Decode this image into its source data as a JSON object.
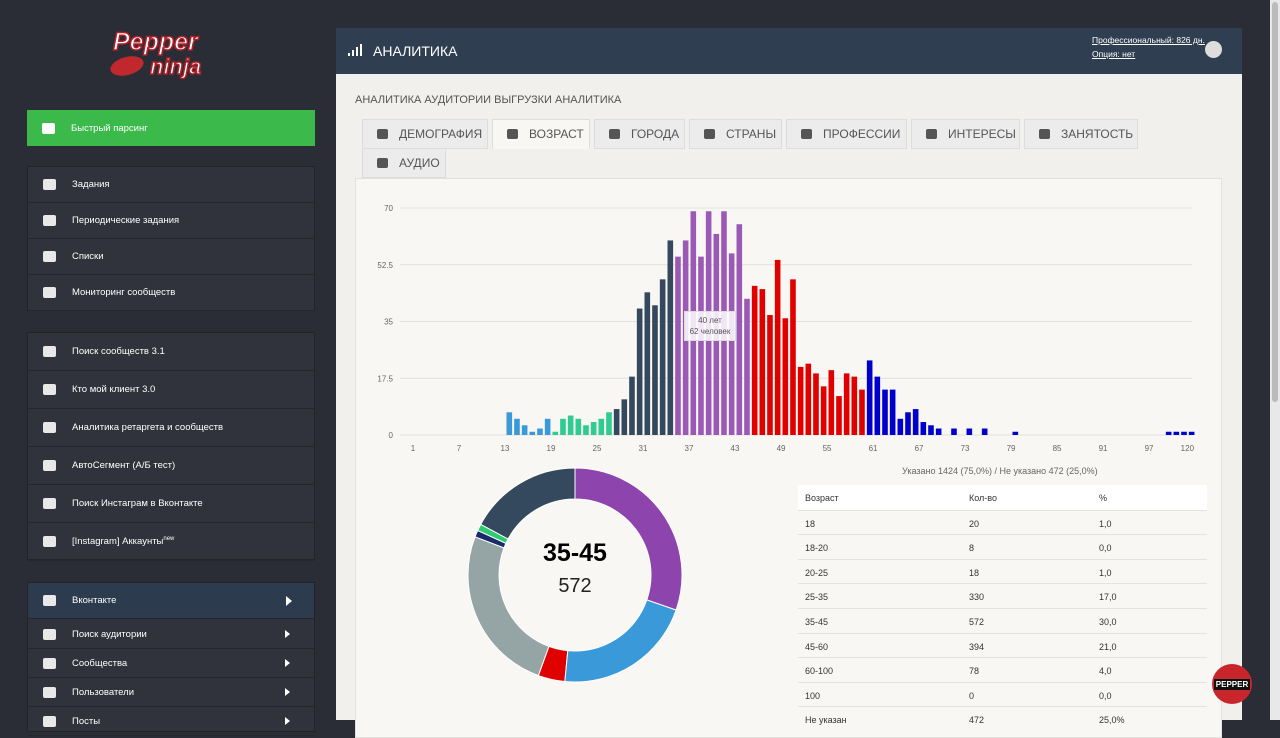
{
  "sidebar": {
    "logo": [
      "Pepper",
      "ninja"
    ],
    "quick": "Быстрый парсинг",
    "group1": [
      "Задания",
      "Периодические задания",
      "Списки",
      "Мониторинг сообществ"
    ],
    "group2": [
      "Поиск сообществ 3.1",
      "Кто мой клиент 3.0",
      "Аналитика ретаргета и сообществ",
      "АвтоСегмент (А/Б тест)",
      "Поиск Инстаграм в Вконтакте",
      "[Instagram] Аккаунты"
    ],
    "new_badge": "new",
    "vk": "Вконтакте",
    "vk_items": [
      "Поиск аудитории",
      "Сообщества",
      "Пользователи",
      "Посты"
    ]
  },
  "header": {
    "title": "АНАЛИТИКА",
    "plan": "Профессиональный: 826 дн.",
    "option": "Опция: нет"
  },
  "page": {
    "title": "АНАЛИТИКА АУДИТОРИИ ВЫГРУЗКИ АНАЛИТИКА",
    "tabs": [
      "ДЕМОГРАФИЯ",
      "ВОЗРАСТ",
      "ГОРОДА",
      "СТРАНЫ",
      "ПРОФЕССИИ",
      "ИНТЕРЕСЫ",
      "ЗАНЯТОСТЬ",
      "АУДИО"
    ]
  },
  "chart_data": [
    {
      "type": "bar",
      "categories": [
        "1",
        null,
        null,
        null,
        null,
        null,
        "7",
        null,
        null,
        null,
        null,
        null,
        "13",
        null,
        null,
        null,
        null,
        null,
        "19",
        null,
        null,
        null,
        null,
        null,
        "25",
        null,
        null,
        null,
        null,
        null,
        "31",
        null,
        null,
        null,
        null,
        null,
        "37",
        null,
        null,
        null,
        null,
        null,
        "43",
        null,
        null,
        null,
        null,
        null,
        "49",
        null,
        null,
        null,
        null,
        null,
        "55",
        null,
        null,
        null,
        null,
        null,
        "61",
        null,
        null,
        null,
        null,
        null,
        "67",
        null,
        null,
        null,
        null,
        null,
        "73",
        null,
        null,
        null,
        null,
        null,
        "79",
        null,
        null,
        null,
        null,
        null,
        "85",
        null,
        null,
        null,
        null,
        null,
        "91",
        null,
        null,
        null,
        null,
        null,
        "97",
        null,
        null,
        null,
        null,
        "120"
      ],
      "values": [
        0,
        0,
        0,
        0,
        0,
        0,
        0,
        0,
        0,
        0,
        0,
        0,
        7,
        5,
        3,
        1,
        2,
        5,
        1,
        5,
        6,
        5,
        3,
        4,
        5,
        7,
        8,
        11,
        18,
        39,
        44,
        40,
        48,
        60,
        55,
        60,
        69,
        55,
        69,
        62,
        69,
        56,
        65,
        42,
        46,
        45,
        37,
        54,
        36,
        48,
        21,
        22,
        19,
        15,
        20,
        12,
        19,
        18,
        14,
        23,
        18,
        14,
        14,
        5,
        7,
        8,
        4,
        3,
        2,
        0,
        2,
        0,
        2,
        0,
        2,
        0,
        0,
        0,
        1,
        0,
        0,
        0,
        0,
        0,
        0,
        0,
        0,
        0,
        0,
        0,
        0,
        0,
        0,
        0,
        0,
        0,
        0,
        0,
        1,
        1,
        1,
        1
      ],
      "colors": [
        "#3a9ad9",
        "#3a9ad9",
        "#3a9ad9",
        "#3a9ad9",
        "#3a9ad9",
        "#3a9ad9",
        "#3a9ad9",
        "#3a9ad9",
        "#3a9ad9",
        "#3a9ad9",
        "#3a9ad9",
        "#3a9ad9",
        "#3a9ad9",
        "#3a9ad9",
        "#3a9ad9",
        "#3a9ad9",
        "#3a9ad9",
        "#3a9ad9",
        "#2ecc8f",
        "#2ecc8f",
        "#2ecc8f",
        "#2ecc8f",
        "#2ecc8f",
        "#2ecc8f",
        "#2ecc8f",
        "#2ecc8f",
        "#34495e",
        "#34495e",
        "#34495e",
        "#34495e",
        "#34495e",
        "#34495e",
        "#34495e",
        "#34495e",
        "#9b59b6",
        "#9b59b6",
        "#9b59b6",
        "#9b59b6",
        "#9b59b6",
        "#9b59b6",
        "#9b59b6",
        "#9b59b6",
        "#9b59b6",
        "#9b59b6",
        "#e00000",
        "#e00000",
        "#e00000",
        "#e00000",
        "#e00000",
        "#e00000",
        "#e00000",
        "#e00000",
        "#e00000",
        "#e00000",
        "#e00000",
        "#e00000",
        "#e00000",
        "#e00000",
        "#e00000",
        "#0000cc",
        "#0000cc",
        "#0000cc",
        "#0000cc",
        "#0000cc",
        "#0000cc",
        "#0000cc",
        "#0000cc",
        "#0000cc",
        "#0000cc",
        "#0000cc",
        "#0000cc",
        "#0000cc",
        "#0000cc",
        "#0000cc",
        "#0000cc",
        "#0000cc",
        "#0000cc",
        "#0000cc",
        "#0000cc",
        "#0000cc",
        "#0000cc",
        "#0000cc",
        "#0000cc",
        "#0000cc",
        "#0000cc",
        "#0000cc",
        "#0000cc",
        "#0000cc",
        "#0000cc",
        "#0000cc",
        "#0000cc",
        "#0000cc",
        "#0000cc",
        "#0000cc",
        "#0000cc",
        "#0000cc",
        "#0000cc",
        "#0000cc",
        "#0000cc",
        "#0000cc",
        "#0000cc",
        "#0000cc"
      ],
      "ylim": [
        0,
        70
      ],
      "yticks": [
        0,
        17.5,
        35,
        52.5,
        70
      ],
      "grid": true,
      "tooltip": [
        "40 лет",
        "62 человек"
      ],
      "note": "Указано 1424 (75,0%) / Не указано 472 (25,0%)"
    },
    {
      "type": "donut",
      "columns": [
        "Возраст",
        "Кол-во",
        "%"
      ],
      "categories": [
        "18",
        "18-20",
        "20-25",
        "25-35",
        "35-45",
        "45-60",
        "60-100",
        "100",
        "Не указан"
      ],
      "counts": [
        20,
        8,
        18,
        330,
        572,
        394,
        78,
        0,
        472
      ],
      "values": [
        1,
        0,
        1,
        17,
        30,
        21,
        4,
        0,
        25
      ],
      "value_labels": [
        "1,0",
        "0,0",
        "1,0",
        "17,0",
        "30,0",
        "21,0",
        "4,0",
        "0,0",
        "25,0%"
      ],
      "colors": [
        "#1b2a6b",
        "#1abc9c",
        "#2ecc71",
        "#34495e",
        "#8e44ad",
        "#3a9ad9",
        "#e00000",
        "#0a1a80",
        "#95a5a6"
      ]
    }
  ],
  "badge": "PEPPER"
}
